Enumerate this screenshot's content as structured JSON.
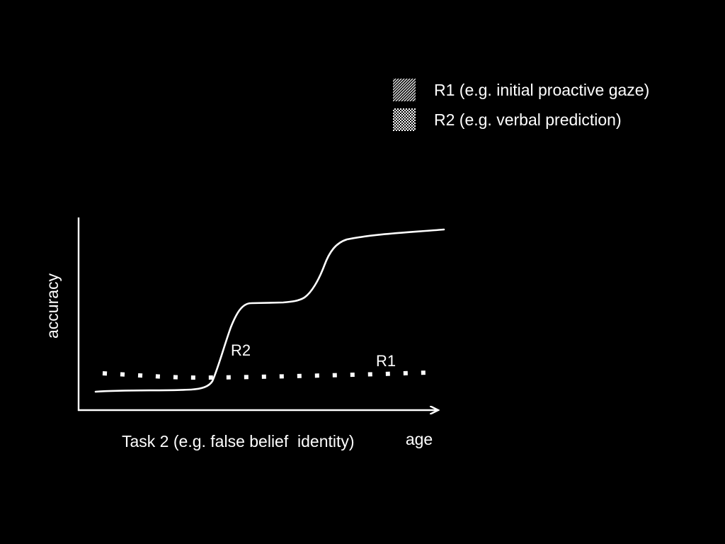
{
  "legend": {
    "items": [
      {
        "label": "R1 (e.g. initial proactive gaze)",
        "pattern": "diagonal-hatch"
      },
      {
        "label": "R2 (e.g. verbal prediction)",
        "pattern": "checkerboard"
      }
    ]
  },
  "diagram": {
    "y_axis_label": "accuracy",
    "x_axis_label": "age",
    "task_label": "Task 2 (e.g. false belief  identity)",
    "curve_labels": {
      "solid": "R2",
      "dotted": "R1"
    }
  },
  "colors": {
    "background": "#000000",
    "foreground": "#ffffff"
  }
}
